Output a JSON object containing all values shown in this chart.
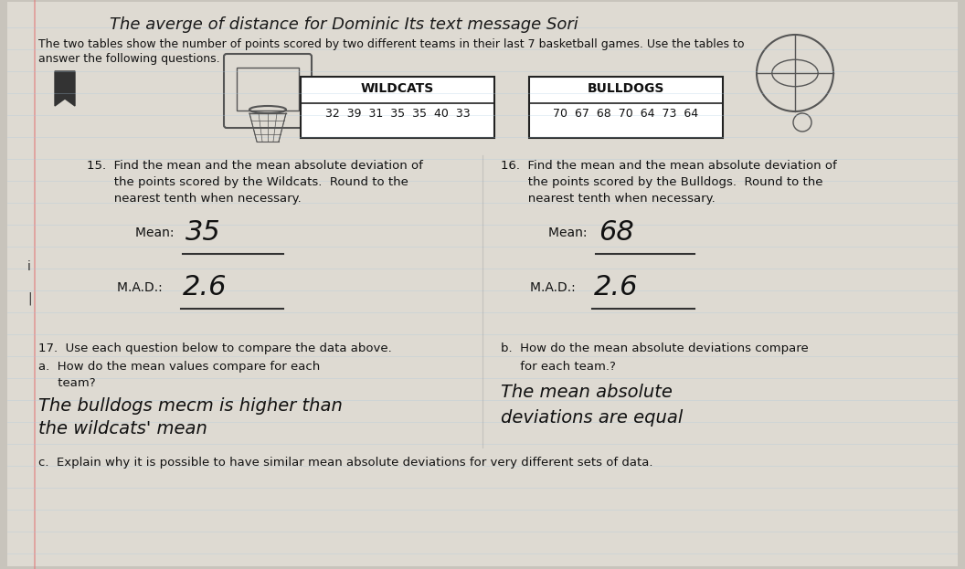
{
  "bg_color": "#c8c4bc",
  "paper_color": "#dedad2",
  "title_handwritten": "The averge of distance for Dominic Its text message Sori",
  "subtitle": "The two tables show the number of points scored by two different teams in their last 7 basketball games. Use the tables to",
  "subtitle2": "answer the following questions.",
  "wildcats_label": "WILDCATS",
  "wildcats_data": "32  39  31  35  35  40  33",
  "bulldogs_label": "BULLDOGS",
  "bulldogs_data": "70  67  68  70  64  73  64",
  "q15_text1": "15.  Find the mean and the mean absolute deviation of",
  "q15_text2": "       the points scored by the Wildcats.  Round to the",
  "q15_text3": "       nearest tenth when necessary.",
  "q15_mean_label": "Mean: ",
  "q15_mean_val": "35",
  "q15_mad_label": "M.A.D.: ",
  "q15_mad_val": "2.6",
  "q16_text1": "16.  Find the mean and the mean absolute deviation of",
  "q16_text2": "       the points scored by the Bulldogs.  Round to the",
  "q16_text3": "       nearest tenth when necessary.",
  "q16_mean_label": "Mean: ",
  "q16_mean_val": "68",
  "q16_mad_label": "M.A.D.: ",
  "q16_mad_val": "2.6",
  "q17_text": "17.  Use each question below to compare the data above.",
  "q17a_text1": "a.  How do the mean values compare for each",
  "q17a_text2": "     team?",
  "q17a_ans1": "The bulldogs mecm is higher than",
  "q17a_ans2": "the wildcats' mean",
  "q17b_text1": "b.  How do the mean absolute deviations compare",
  "q17b_text2": "     for each team.?",
  "q17b_ans1": "The mean absolute",
  "q17b_ans2": "deviations are equal",
  "q17c_text": "c.  Explain why it is possible to have similar mean absolute deviations for very different sets of data."
}
